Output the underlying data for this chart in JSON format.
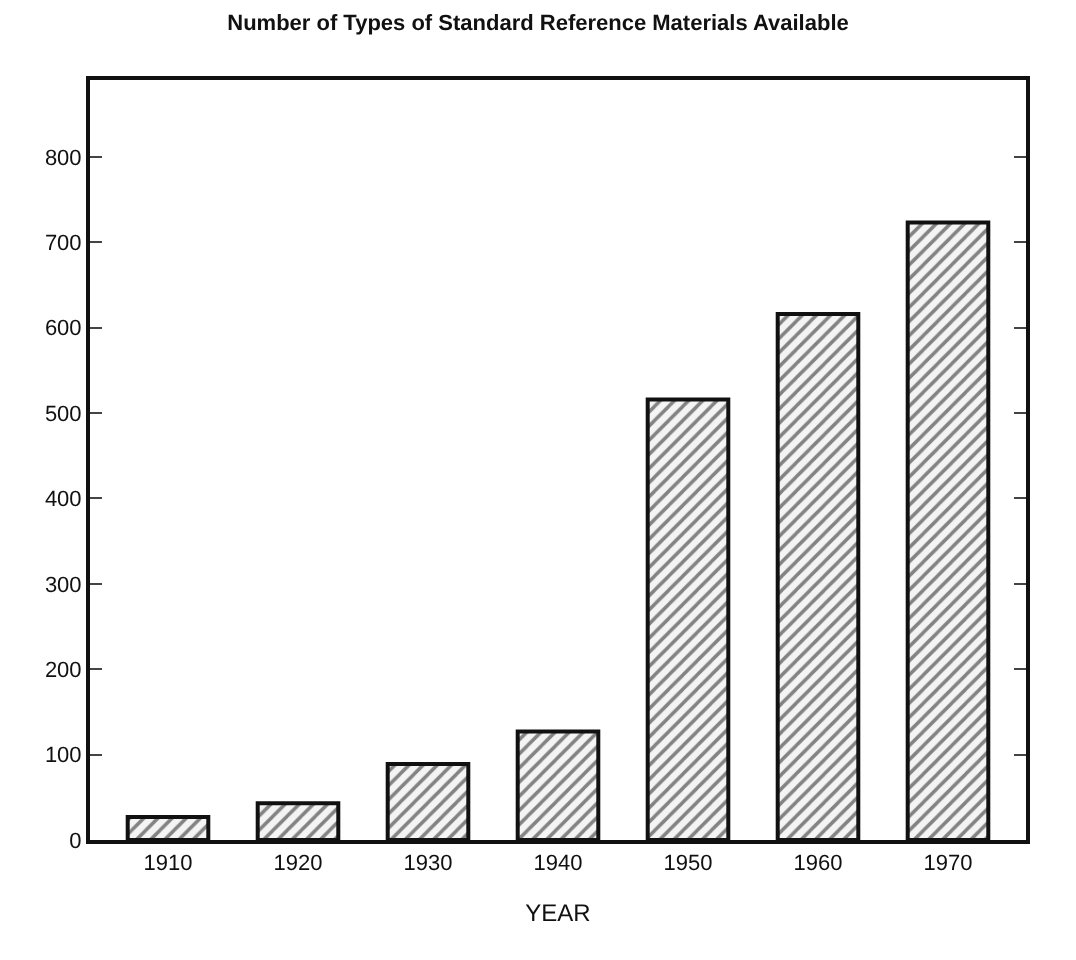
{
  "chart_data": {
    "type": "bar",
    "title": "Number of Types of Standard Reference Materials Available",
    "xlabel": "YEAR",
    "categories": [
      "1910",
      "1920",
      "1930",
      "1940",
      "1950",
      "1960",
      "1970"
    ],
    "values": [
      27,
      43,
      89,
      127,
      516,
      616,
      723
    ],
    "color": "#111111",
    "ylim": [
      0,
      890
    ],
    "yticks": [
      0,
      100,
      200,
      300,
      400,
      500,
      600,
      700,
      800
    ]
  }
}
